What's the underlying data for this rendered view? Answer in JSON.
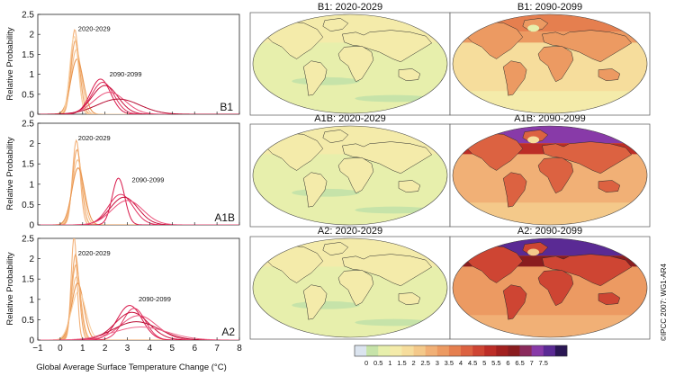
{
  "credit": "©IPCC 2007: WG1-AR4",
  "palette": {
    "early": [
      "#f3b27a",
      "#eea566",
      "#f5c08c",
      "#e9954f",
      "#f8cfa2",
      "#f0ab6e"
    ],
    "late": [
      "#d8184a",
      "#e0305e",
      "#c8103c",
      "#ea4f78",
      "#b80d33",
      "#f06a8e"
    ],
    "map_stops": [
      "#dbe4ef",
      "#c6e3a9",
      "#e7efac",
      "#f4ebaa",
      "#f6dd9c",
      "#f4c98a",
      "#f1b076",
      "#ec9a62",
      "#e57f4f",
      "#dc6241",
      "#ce4533",
      "#bc2d27",
      "#a2201f",
      "#8a1c1f",
      "#8a2a5c",
      "#883aa8",
      "#5a2a94",
      "#2a1654"
    ],
    "ocean": "#e7efac",
    "coast": "#2b2b2b"
  },
  "chart_data": [
    {
      "type": "line",
      "scenario_label": "B1",
      "xlabel": "",
      "ylabel": "Relative Probability",
      "xlim": [
        -1,
        8
      ],
      "ylim": [
        0,
        2.5
      ],
      "yticks": [
        "0",
        "0.5",
        "1",
        "1.5",
        "2",
        "2.5"
      ],
      "annotations": [
        {
          "text": "2020-2029",
          "x": 0.8,
          "y": 2.08
        },
        {
          "text": "2090-2099",
          "x": 2.2,
          "y": 0.95
        }
      ],
      "series": [
        {
          "group": "2020-2029",
          "mu": 0.65,
          "sigma": 0.17,
          "peak": 2.12
        },
        {
          "group": "2020-2029",
          "mu": 0.68,
          "sigma": 0.2,
          "peak": 1.85
        },
        {
          "group": "2020-2029",
          "mu": 0.72,
          "sigma": 0.23,
          "peak": 1.62
        },
        {
          "group": "2020-2029",
          "mu": 0.75,
          "sigma": 0.28,
          "peak": 1.38
        },
        {
          "group": "2020-2029",
          "mu": 0.62,
          "sigma": 0.19,
          "peak": 1.95
        },
        {
          "group": "2090-2099",
          "mu": 1.8,
          "sigma": 0.45,
          "peak": 0.88
        },
        {
          "group": "2090-2099",
          "mu": 1.9,
          "sigma": 0.5,
          "peak": 0.8
        },
        {
          "group": "2090-2099",
          "mu": 2.0,
          "sigma": 0.58,
          "peak": 0.72
        },
        {
          "group": "2090-2099",
          "mu": 2.2,
          "sigma": 0.7,
          "peak": 0.55
        },
        {
          "group": "2090-2099",
          "mu": 2.6,
          "sigma": 0.95,
          "peak": 0.38
        }
      ]
    },
    {
      "type": "line",
      "scenario_label": "A1B",
      "xlabel": "",
      "ylabel": "Relative Probability",
      "xlim": [
        -1,
        8
      ],
      "ylim": [
        0,
        2.5
      ],
      "yticks": [
        "0",
        "0.5",
        "1",
        "1.5",
        "2",
        "2.5"
      ],
      "annotations": [
        {
          "text": "2020-2029",
          "x": 0.8,
          "y": 2.08
        },
        {
          "text": "2090-2099",
          "x": 3.2,
          "y": 1.05
        }
      ],
      "series": [
        {
          "group": "2020-2029",
          "mu": 0.72,
          "sigma": 0.17,
          "peak": 2.08
        },
        {
          "group": "2020-2029",
          "mu": 0.75,
          "sigma": 0.2,
          "peak": 1.85
        },
        {
          "group": "2020-2029",
          "mu": 0.78,
          "sigma": 0.24,
          "peak": 1.6
        },
        {
          "group": "2020-2029",
          "mu": 0.8,
          "sigma": 0.28,
          "peak": 1.4
        },
        {
          "group": "2090-2099",
          "mu": 2.6,
          "sigma": 0.28,
          "peak": 1.15
        },
        {
          "group": "2090-2099",
          "mu": 2.7,
          "sigma": 0.55,
          "peak": 0.75
        },
        {
          "group": "2090-2099",
          "mu": 2.85,
          "sigma": 0.62,
          "peak": 0.68
        },
        {
          "group": "2090-2099",
          "mu": 3.0,
          "sigma": 0.7,
          "peak": 0.6
        }
      ]
    },
    {
      "type": "line",
      "scenario_label": "A2",
      "xlabel": "Global Average Surface Temperature Change (°C)",
      "ylabel": "Relative Probability",
      "xlim": [
        -1,
        8
      ],
      "ylim": [
        0,
        2.5
      ],
      "yticks": [
        "0",
        "0.5",
        "1",
        "1.5",
        "2",
        "2.5"
      ],
      "xticks": [
        "−1",
        "0",
        "1",
        "2",
        "3",
        "4",
        "5",
        "6",
        "7",
        "8"
      ],
      "annotations": [
        {
          "text": "2020-2029",
          "x": 0.8,
          "y": 2.08
        },
        {
          "text": "2090-2099",
          "x": 3.5,
          "y": 0.95
        }
      ],
      "series": [
        {
          "group": "2020-2029",
          "mu": 0.62,
          "sigma": 0.13,
          "peak": 2.55
        },
        {
          "group": "2020-2029",
          "mu": 0.68,
          "sigma": 0.17,
          "peak": 2.1
        },
        {
          "group": "2020-2029",
          "mu": 0.72,
          "sigma": 0.22,
          "peak": 1.55
        },
        {
          "group": "2020-2029",
          "mu": 0.78,
          "sigma": 0.27,
          "peak": 1.4
        },
        {
          "group": "2020-2029",
          "mu": 0.82,
          "sigma": 0.32,
          "peak": 1.2
        },
        {
          "group": "2020-2029",
          "mu": 0.7,
          "sigma": 0.2,
          "peak": 1.85
        },
        {
          "group": "2090-2099",
          "mu": 3.1,
          "sigma": 0.55,
          "peak": 0.85
        },
        {
          "group": "2090-2099",
          "mu": 3.3,
          "sigma": 0.5,
          "peak": 0.78
        },
        {
          "group": "2090-2099",
          "mu": 3.2,
          "sigma": 0.75,
          "peak": 0.68
        },
        {
          "group": "2090-2099",
          "mu": 3.5,
          "sigma": 0.8,
          "peak": 0.6
        },
        {
          "group": "2090-2099",
          "mu": 3.4,
          "sigma": 1.0,
          "peak": 0.45
        },
        {
          "group": "2090-2099",
          "mu": 3.6,
          "sigma": 1.2,
          "peak": 0.32
        }
      ]
    },
    {
      "type": "heatmap",
      "maps": [
        {
          "title": "B1: 2020-2029",
          "base_level": 0.6,
          "arctic_level": 0.9
        },
        {
          "title": "B1: 2090-2099",
          "base_level": 2.0,
          "arctic_level": 3.6
        },
        {
          "title": "A1B: 2020-2029",
          "base_level": 0.6,
          "arctic_level": 1.0
        },
        {
          "title": "A1B: 2090-2099",
          "base_level": 3.0,
          "arctic_level": 6.8
        },
        {
          "title": "A2: 2020-2029",
          "base_level": 0.6,
          "arctic_level": 0.9
        },
        {
          "title": "A2: 2090-2099",
          "base_level": 3.5,
          "arctic_level": 7.5
        }
      ],
      "colorbar_ticks": [
        "0",
        "0.5",
        "1",
        "1.5",
        "2",
        "2.5",
        "3",
        "3.5",
        "4",
        "4.5",
        "5",
        "5.5",
        "6",
        "6.5",
        "7",
        "7.5"
      ]
    }
  ]
}
